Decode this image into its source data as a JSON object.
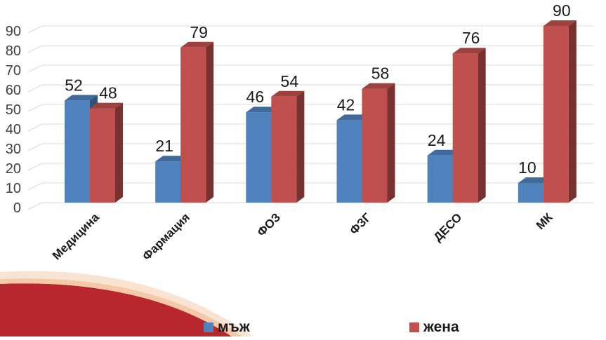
{
  "chart_data": {
    "type": "bar",
    "style": "3d-clustered-column",
    "categories": [
      "Медицина",
      "Фармация",
      "ФОЗ",
      "ФЗГ",
      "ДЕСО",
      "МК"
    ],
    "series": [
      {
        "name": "мъж",
        "color": "#4F81BD",
        "values": [
          52,
          21,
          46,
          42,
          24,
          10
        ]
      },
      {
        "name": "жена",
        "color": "#C0504D",
        "values": [
          48,
          79,
          54,
          58,
          76,
          90
        ]
      }
    ],
    "y_ticks": [
      "0",
      "10",
      "20",
      "30",
      "40",
      "50",
      "60",
      "70",
      "80",
      "90"
    ],
    "ylim": [
      0,
      90
    ],
    "grid": true,
    "data_labels": true,
    "legend_position": "bottom",
    "title": "",
    "xlabel": "",
    "ylabel": ""
  }
}
